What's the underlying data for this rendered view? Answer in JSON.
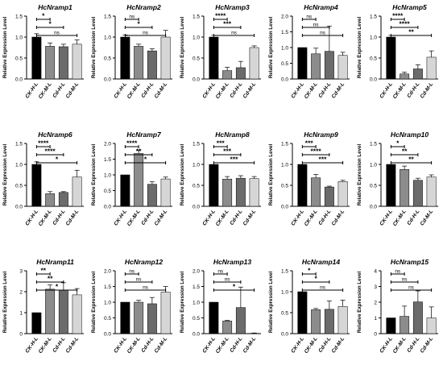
{
  "colors": {
    "CK-H-L": "#000000",
    "CK-M-L": "#8c8c8c",
    "Cd-H-L": "#6b6b6b",
    "Cd-M-L": "#d6d6d6",
    "axis": "#000000"
  },
  "chart_data": [
    {
      "type": "bar",
      "title": "HcNramp1",
      "ylabel": "Relative Expression Level",
      "categories": [
        "CK-H-L",
        "CK-M-L",
        "Cd-H-L",
        "Cd-M-L"
      ],
      "values": [
        1.0,
        0.78,
        0.77,
        0.83
      ],
      "errors": [
        0.08,
        0.08,
        0.06,
        0.1
      ],
      "ylim": [
        0,
        1.5
      ],
      "yticks": [
        "0.0",
        "0.5",
        "1.0",
        "1.5"
      ],
      "significance": [
        {
          "from": 0,
          "to": 1,
          "label": "*"
        },
        {
          "from": 0,
          "to": 2,
          "label": "*"
        },
        {
          "from": 0,
          "to": 3,
          "label": "ns"
        }
      ]
    },
    {
      "type": "bar",
      "title": "HcNramp2",
      "ylabel": "Relative Expression Level",
      "categories": [
        "CK-H-L",
        "CK-M-L",
        "Cd-H-L",
        "Cd-M-L"
      ],
      "values": [
        1.0,
        0.78,
        0.67,
        1.0
      ],
      "errors": [
        0.05,
        0.05,
        0.05,
        0.16
      ],
      "ylim": [
        0,
        1.5
      ],
      "yticks": [
        "0.0",
        "0.5",
        "1.0",
        "1.5"
      ],
      "significance": [
        {
          "from": 0,
          "to": 1,
          "label": "ns"
        },
        {
          "from": 0,
          "to": 2,
          "label": "*"
        },
        {
          "from": 0,
          "to": 3,
          "label": "ns"
        }
      ]
    },
    {
      "type": "bar",
      "title": "HcNramp3",
      "ylabel": "Relative Expression Level",
      "categories": [
        "CK-H-L",
        "CK-M-L",
        "Cd-H-L",
        "Cd-M-L"
      ],
      "values": [
        1.0,
        0.2,
        0.27,
        0.75
      ],
      "errors": [
        0.04,
        0.08,
        0.15,
        0.04
      ],
      "ylim": [
        0,
        1.5
      ],
      "yticks": [
        "0.0",
        "0.5",
        "1.0",
        "1.5"
      ],
      "significance": [
        {
          "from": 0,
          "to": 1,
          "label": "****"
        },
        {
          "from": 0,
          "to": 2,
          "label": "***"
        },
        {
          "from": 0,
          "to": 3,
          "label": "ns"
        }
      ]
    },
    {
      "type": "bar",
      "title": "HcNramp4",
      "ylabel": "Relative Expression Level",
      "categories": [
        "CK-H-L",
        "CK-M-L",
        "Cd-H-L",
        "Cd-M-L"
      ],
      "values": [
        1.0,
        0.8,
        0.88,
        0.75
      ],
      "errors": [
        0.0,
        0.18,
        0.8,
        0.1
      ],
      "ylim": [
        0,
        2.0
      ],
      "yticks": [
        "0.0",
        "0.5",
        "1.0",
        "1.5",
        "2.0"
      ],
      "significance": [
        {
          "from": 0,
          "to": 1,
          "label": "ns"
        },
        {
          "from": 0,
          "to": 2,
          "label": "ns"
        },
        {
          "from": 0,
          "to": 3,
          "label": "ns"
        }
      ]
    },
    {
      "type": "bar",
      "title": "HcNramp5",
      "ylabel": "Relative Expression Level",
      "categories": [
        "CK-H-L",
        "CK-M-L",
        "Cd-H-L",
        "Cd-M-L"
      ],
      "values": [
        1.0,
        0.12,
        0.24,
        0.52
      ],
      "errors": [
        0.04,
        0.04,
        0.1,
        0.15
      ],
      "ylim": [
        0,
        1.5
      ],
      "yticks": [
        "0.0",
        "0.5",
        "1.0",
        "1.5"
      ],
      "significance": [
        {
          "from": 0,
          "to": 1,
          "label": "****"
        },
        {
          "from": 0,
          "to": 2,
          "label": "****"
        },
        {
          "from": 0,
          "to": 3,
          "label": "**"
        }
      ]
    },
    {
      "type": "bar",
      "title": "HcNramp6",
      "ylabel": "Relative Expression Level",
      "categories": [
        "CK-H-L",
        "CK-M-L",
        "Cd-H-L",
        "Cd-M-L"
      ],
      "values": [
        1.0,
        0.3,
        0.33,
        0.7
      ],
      "errors": [
        0.06,
        0.05,
        0.02,
        0.16
      ],
      "ylim": [
        0,
        1.5
      ],
      "yticks": [
        "0.0",
        "0.5",
        "1.0",
        "1.5"
      ],
      "significance": [
        {
          "from": 0,
          "to": 1,
          "label": "****"
        },
        {
          "from": 0,
          "to": 2,
          "label": "****"
        },
        {
          "from": 0,
          "to": 3,
          "label": "*"
        }
      ]
    },
    {
      "type": "bar",
      "title": "HcNramp7",
      "ylabel": "Relative Expression Level",
      "categories": [
        "CK-H-L",
        "CK-M-L",
        "Cd-H-L",
        "Cd-M-L"
      ],
      "values": [
        1.0,
        1.68,
        0.7,
        0.87
      ],
      "errors": [
        0.0,
        0.1,
        0.08,
        0.06
      ],
      "ylim": [
        0,
        2.0
      ],
      "yticks": [
        "0.0",
        "0.5",
        "1.0",
        "1.5",
        "2.0"
      ],
      "significance": [
        {
          "from": 0,
          "to": 1,
          "label": "****"
        },
        {
          "from": 0,
          "to": 2,
          "label": "**"
        },
        {
          "from": 0,
          "to": 3,
          "label": "*"
        }
      ]
    },
    {
      "type": "bar",
      "title": "HcNramp8",
      "ylabel": "Relative Expression Level",
      "categories": [
        "CK-H-L",
        "CK-M-L",
        "Cd-H-L",
        "Cd-M-L"
      ],
      "values": [
        1.0,
        0.65,
        0.67,
        0.66
      ],
      "errors": [
        0.0,
        0.06,
        0.06,
        0.05
      ],
      "ylim": [
        0,
        1.5
      ],
      "yticks": [
        "0.0",
        "0.5",
        "1.0",
        "1.5"
      ],
      "significance": [
        {
          "from": 0,
          "to": 1,
          "label": "***"
        },
        {
          "from": 0,
          "to": 2,
          "label": "***"
        },
        {
          "from": 0,
          "to": 3,
          "label": "***"
        }
      ]
    },
    {
      "type": "bar",
      "title": "HcNramp9",
      "ylabel": "Relative Expression Level",
      "categories": [
        "CK-H-L",
        "CK-M-L",
        "Cd-H-L",
        "Cd-M-L"
      ],
      "values": [
        1.0,
        0.68,
        0.46,
        0.59
      ],
      "errors": [
        0.0,
        0.08,
        0.02,
        0.03
      ],
      "ylim": [
        0,
        1.5
      ],
      "yticks": [
        "0.0",
        "0.5",
        "1.0",
        "1.5"
      ],
      "significance": [
        {
          "from": 0,
          "to": 1,
          "label": "***"
        },
        {
          "from": 0,
          "to": 2,
          "label": "****"
        },
        {
          "from": 0,
          "to": 3,
          "label": "***"
        }
      ]
    },
    {
      "type": "bar",
      "title": "HcNramp10",
      "ylabel": "Relative Expression Level",
      "categories": [
        "CK-H-L",
        "CK-M-L",
        "Cd-H-L",
        "Cd-M-L"
      ],
      "values": [
        1.0,
        0.88,
        0.62,
        0.7
      ],
      "errors": [
        0.0,
        0.08,
        0.05,
        0.05
      ],
      "ylim": [
        0,
        1.5
      ],
      "yticks": [
        "0.0",
        "0.5",
        "1.0",
        "1.5"
      ],
      "significance": [
        {
          "from": 0,
          "to": 1,
          "label": "*"
        },
        {
          "from": 0,
          "to": 2,
          "label": "**"
        },
        {
          "from": 0,
          "to": 3,
          "label": "**"
        }
      ]
    },
    {
      "type": "bar",
      "title": "HcNramp11",
      "ylabel": "Relative Expression Level",
      "categories": [
        "CK-H-L",
        "CK-M-L",
        "Cd-H-L",
        "Cd-M-L"
      ],
      "values": [
        1.0,
        2.12,
        2.08,
        1.85
      ],
      "errors": [
        0.0,
        0.2,
        0.35,
        0.3
      ],
      "ylim": [
        0,
        3
      ],
      "yticks": [
        "0",
        "1",
        "2",
        "3"
      ],
      "significance": [
        {
          "from": 0,
          "to": 1,
          "label": "**"
        },
        {
          "from": 0,
          "to": 2,
          "label": "**"
        },
        {
          "from": 0,
          "to": 3,
          "label": "*"
        }
      ]
    },
    {
      "type": "bar",
      "title": "HcNramp12",
      "ylabel": "Relative Expression Level",
      "categories": [
        "CK-H-L",
        "CK-M-L",
        "Cd-H-L",
        "Cd-M-L"
      ],
      "values": [
        1.0,
        1.0,
        0.95,
        1.32
      ],
      "errors": [
        0.0,
        0.06,
        0.2,
        0.18
      ],
      "ylim": [
        0,
        2.0
      ],
      "yticks": [
        "0.0",
        "0.5",
        "1.0",
        "1.5",
        "2.0"
      ],
      "significance": [
        {
          "from": 0,
          "to": 1,
          "label": "ns"
        },
        {
          "from": 0,
          "to": 2,
          "label": "ns"
        },
        {
          "from": 0,
          "to": 3,
          "label": "ns"
        }
      ]
    },
    {
      "type": "bar",
      "title": "HcNramp13",
      "ylabel": "Relative Expression Level",
      "categories": [
        "CK-H-L",
        "CK-M-L",
        "Cd-H-L",
        "Cd-M-L"
      ],
      "values": [
        1.0,
        0.4,
        0.83,
        0.01
      ],
      "errors": [
        0.0,
        0.02,
        0.65,
        0.01
      ],
      "ylim": [
        0,
        2.0
      ],
      "yticks": [
        "0.0",
        "0.5",
        "1.0",
        "1.5",
        "2.0"
      ],
      "significance": [
        {
          "from": 0,
          "to": 1,
          "label": "ns"
        },
        {
          "from": 0,
          "to": 2,
          "label": "ns"
        },
        {
          "from": 0,
          "to": 3,
          "label": "*"
        }
      ]
    },
    {
      "type": "bar",
      "title": "HcNramp14",
      "ylabel": "Relative Expression Level",
      "categories": [
        "CK-H-L",
        "CK-M-L",
        "Cd-H-L",
        "Cd-M-L"
      ],
      "values": [
        1.0,
        0.57,
        0.58,
        0.65
      ],
      "errors": [
        0.0,
        0.03,
        0.2,
        0.15
      ],
      "ylim": [
        0,
        1.5
      ],
      "yticks": [
        "0.0",
        "0.5",
        "1.0",
        "1.5"
      ],
      "significance": [
        {
          "from": 0,
          "to": 1,
          "label": "*"
        },
        {
          "from": 0,
          "to": 2,
          "label": "*"
        },
        {
          "from": 0,
          "to": 3,
          "label": "ns"
        }
      ]
    },
    {
      "type": "bar",
      "title": "HcNramp15",
      "ylabel": "Relative Expression Level",
      "categories": [
        "CK-H-L",
        "CK-M-L",
        "Cd-H-L",
        "Cd-M-L"
      ],
      "values": [
        1.0,
        1.1,
        2.02,
        1.0
      ],
      "errors": [
        0.0,
        0.65,
        0.7,
        0.7
      ],
      "ylim": [
        0,
        4
      ],
      "yticks": [
        "0",
        "1",
        "2",
        "3",
        "4"
      ],
      "significance": [
        {
          "from": 0,
          "to": 1,
          "label": "ns"
        },
        {
          "from": 0,
          "to": 2,
          "label": "ns"
        },
        {
          "from": 0,
          "to": 3,
          "label": "ns"
        }
      ]
    }
  ]
}
